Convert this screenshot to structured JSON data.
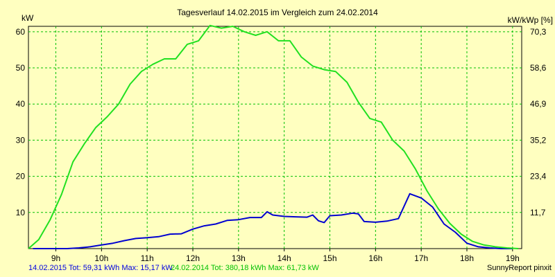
{
  "chart_data": {
    "type": "line",
    "title": "Tagesverlauf 14.02.2015 im Vergleich zum 24.02.2014",
    "y_left_label": "kW",
    "y_right_label": "kW/kWp [%]",
    "x_ticks": [
      "9h",
      "10h",
      "11h",
      "12h",
      "13h",
      "14h",
      "15h",
      "16h",
      "17h",
      "18h",
      "19h"
    ],
    "x_range_hours": [
      8.4,
      19.2
    ],
    "y_ticks": [
      10,
      20,
      30,
      40,
      50,
      60
    ],
    "y_right_ticks": [
      "11,7",
      "23,4",
      "35,2",
      "46,9",
      "58,6",
      "70,3"
    ],
    "ylim": [
      0,
      61.5
    ],
    "grid": true,
    "series": [
      {
        "name": "14.02.2015",
        "color": "#0000d0",
        "x": [
          8.5,
          9.0,
          9.25,
          9.5,
          9.75,
          10.0,
          10.25,
          10.5,
          10.75,
          11.0,
          11.25,
          11.5,
          11.75,
          12.0,
          12.25,
          12.5,
          12.75,
          13.0,
          13.25,
          13.5,
          13.625,
          13.75,
          14.0,
          14.25,
          14.5,
          14.625,
          14.75,
          14.875,
          15.0,
          15.25,
          15.5,
          15.625,
          15.75,
          16.0,
          16.25,
          16.5,
          16.75,
          17.0,
          17.25,
          17.5,
          17.75,
          18.0,
          18.25,
          18.5,
          18.75,
          19.0
        ],
        "values": [
          0,
          0,
          0,
          0.2,
          0.5,
          1.0,
          1.5,
          2.2,
          2.8,
          3.0,
          3.3,
          4.0,
          4.1,
          5.4,
          6.3,
          6.8,
          7.8,
          8.0,
          8.6,
          8.6,
          10.2,
          9.3,
          8.9,
          8.8,
          8.7,
          9.3,
          7.7,
          7.2,
          9.1,
          9.3,
          9.8,
          9.6,
          7.5,
          7.3,
          7.6,
          8.3,
          15.17,
          14.0,
          11.5,
          6.8,
          4.5,
          1.5,
          0.5,
          0.2,
          0,
          0
        ],
        "summary": "14.02.2015 Tot: 59,31 kWh Max: 15,17 kW"
      },
      {
        "name": "24.02.2014",
        "color": "#20e020",
        "x": [
          8.4,
          8.625,
          8.875,
          9.125,
          9.375,
          9.625,
          9.875,
          10.125,
          10.375,
          10.625,
          10.875,
          11.125,
          11.375,
          11.625,
          11.875,
          12.125,
          12.375,
          12.625,
          12.875,
          13.125,
          13.375,
          13.625,
          13.875,
          14.125,
          14.375,
          14.625,
          14.875,
          15.125,
          15.375,
          15.625,
          15.875,
          16.125,
          16.375,
          16.625,
          16.875,
          17.125,
          17.375,
          17.625,
          17.875,
          18.125,
          18.375,
          18.625,
          18.875,
          19.125
        ],
        "values": [
          0,
          2.5,
          8.0,
          15.0,
          24.0,
          29.0,
          33.5,
          36.5,
          40.0,
          45.5,
          49.0,
          51.0,
          52.5,
          52.5,
          56.5,
          57.5,
          61.73,
          61.0,
          61.5,
          60.0,
          59.0,
          60.0,
          57.5,
          57.5,
          53.0,
          50.5,
          49.5,
          49.0,
          46.0,
          40.5,
          36.0,
          35.0,
          30.0,
          27.0,
          22.0,
          16.0,
          11.0,
          7.0,
          4.0,
          2.0,
          1.0,
          0.5,
          0.2,
          0
        ],
        "summary": "24.02.2014 Tot: 380,18 kWh Max: 61,73 kW"
      }
    ],
    "credit": "SunnyReport pinxit"
  }
}
